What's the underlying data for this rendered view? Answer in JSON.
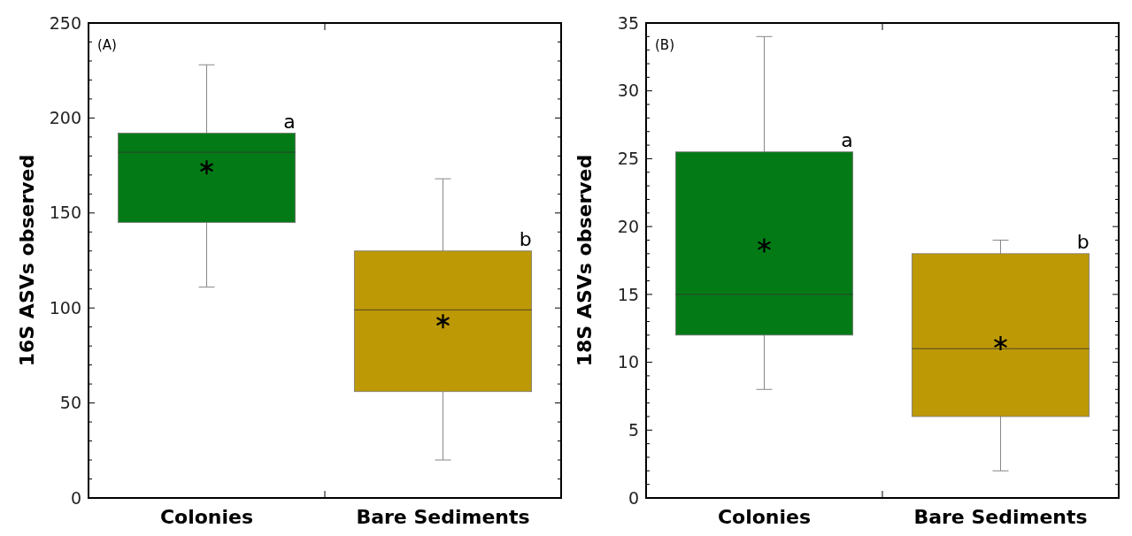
{
  "chart_data": [
    {
      "type": "box",
      "ylabel": "16S ASVs observed",
      "categories": [
        "Colonies",
        "Bare Sediments"
      ],
      "colors": [
        "#037a15",
        "#bd9905"
      ],
      "marker": "star",
      "boxes": [
        {
          "low": 111,
          "q1": 145,
          "median": 182,
          "q3": 192,
          "high": 228,
          "mean": 174
        },
        {
          "low": 20,
          "q1": 56,
          "median": 99,
          "q3": 130,
          "high": 168,
          "mean": 93
        }
      ],
      "ylim": [
        0,
        250
      ],
      "yticks": [
        0,
        {
          "value": 10,
          "label": null
        },
        {
          "value": 20,
          "label": null
        },
        {
          "value": 30,
          "label": null
        },
        {
          "value": 40,
          "label": null
        },
        50,
        {
          "value": 60,
          "label": null
        },
        {
          "value": 70,
          "label": null
        },
        {
          "value": 80,
          "label": null
        },
        {
          "value": 90,
          "label": null
        },
        100,
        {
          "value": 110,
          "label": null
        },
        {
          "value": 120,
          "label": null
        },
        {
          "value": 130,
          "label": null
        },
        {
          "value": 140,
          "label": null
        },
        150,
        {
          "value": 160,
          "label": null
        },
        {
          "value": 170,
          "label": null
        },
        {
          "value": 180,
          "label": null
        },
        {
          "value": 190,
          "label": null
        },
        200,
        {
          "value": 210,
          "label": null
        },
        {
          "value": 220,
          "label": null
        },
        {
          "value": 230,
          "label": null
        },
        {
          "value": 240,
          "label": null
        },
        250
      ],
      "annotations": [
        "(A)",
        "a",
        "b"
      ]
    },
    {
      "type": "box",
      "ylabel": "18S ASVs observed",
      "categories": [
        "Colonies",
        "Bare Sediments"
      ],
      "colors": [
        "#037a15",
        "#bd9905"
      ],
      "marker": "star",
      "boxes": [
        {
          "low": 8,
          "q1": 12,
          "median": 15,
          "q3": 25.5,
          "high": 34,
          "mean": 18.6
        },
        {
          "low": 2,
          "q1": 6,
          "median": 11,
          "q3": 18,
          "high": 19,
          "mean": 11.4
        }
      ],
      "ylim": [
        0,
        35
      ],
      "yticks": [
        0,
        {
          "value": 1,
          "label": null
        },
        {
          "value": 2,
          "label": null
        },
        {
          "value": 3,
          "label": null
        },
        {
          "value": 4,
          "label": null
        },
        5,
        {
          "value": 6,
          "label": null
        },
        {
          "value": 7,
          "label": null
        },
        {
          "value": 8,
          "label": null
        },
        {
          "value": 9,
          "label": null
        },
        10,
        {
          "value": 11,
          "label": null
        },
        {
          "value": 12,
          "label": null
        },
        {
          "value": 13,
          "label": null
        },
        {
          "value": 14,
          "label": null
        },
        15,
        {
          "value": 16,
          "label": null
        },
        {
          "value": 17,
          "label": null
        },
        {
          "value": 18,
          "label": null
        },
        {
          "value": 19,
          "label": null
        },
        20,
        {
          "value": 21,
          "label": null
        },
        {
          "value": 22,
          "label": null
        },
        {
          "value": 23,
          "label": null
        },
        {
          "value": 24,
          "label": null
        },
        25,
        {
          "value": 26,
          "label": null
        },
        {
          "value": 27,
          "label": null
        },
        {
          "value": 28,
          "label": null
        },
        {
          "value": 29,
          "label": null
        },
        30,
        {
          "value": 31,
          "label": null
        },
        {
          "value": 32,
          "label": null
        },
        {
          "value": 33,
          "label": null
        },
        {
          "value": 34,
          "label": null
        },
        35
      ],
      "annotations": [
        "(B)",
        "a",
        "b"
      ]
    }
  ]
}
